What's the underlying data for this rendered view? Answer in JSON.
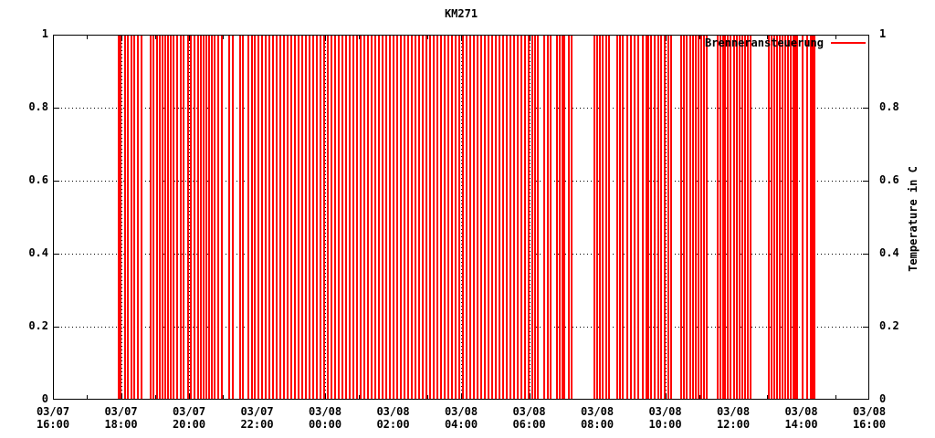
{
  "title": "KM271",
  "legend": {
    "label": "Brenneransteuerung"
  },
  "y2_title": "Temperature in C",
  "colors": {
    "impulse": "#ff0000",
    "frame": "#000000",
    "grid": "#000000",
    "background": "#ffffff",
    "text": "#000000"
  },
  "chart_data": {
    "type": "impulse",
    "title": "KM271",
    "legend": {
      "label": "Brenneransteuerung",
      "position": "top-right"
    },
    "x_axis": {
      "range_hours": [
        0,
        24
      ],
      "major_tick_every_hours": 2,
      "minor_tick_every_hours": 1,
      "grid": "dotted",
      "tick_labels": [
        {
          "date": "03/07",
          "time": "16:00"
        },
        {
          "date": "03/07",
          "time": "18:00"
        },
        {
          "date": "03/07",
          "time": "20:00"
        },
        {
          "date": "03/07",
          "time": "22:00"
        },
        {
          "date": "03/08",
          "time": "00:00"
        },
        {
          "date": "03/08",
          "time": "02:00"
        },
        {
          "date": "03/08",
          "time": "04:00"
        },
        {
          "date": "03/08",
          "time": "06:00"
        },
        {
          "date": "03/08",
          "time": "08:00"
        },
        {
          "date": "03/08",
          "time": "10:00"
        },
        {
          "date": "03/08",
          "time": "12:00"
        },
        {
          "date": "03/08",
          "time": "14:00"
        },
        {
          "date": "03/08",
          "time": "16:00"
        }
      ]
    },
    "y_axis": {
      "range": [
        0,
        1
      ],
      "tick_values": [
        0,
        0.2,
        0.4,
        0.6,
        0.8,
        1
      ],
      "tick_labels": [
        "0",
        "0.2",
        "0.4",
        "0.6",
        "0.8",
        "1"
      ],
      "grid": "dotted",
      "mirrored_right": true
    },
    "y2_axis_title": "Temperature in C",
    "series": [
      {
        "name": "Brenneransteuerung",
        "color": "#ff0000",
        "impulse_value": 1,
        "times_hours": [
          1.906,
          1.96,
          2.094,
          2.174,
          2.282,
          2.362,
          2.47,
          2.577,
          2.846,
          2.926,
          3.034,
          3.114,
          3.195,
          3.275,
          3.356,
          3.436,
          3.517,
          3.624,
          3.732,
          3.812,
          3.946,
          4.027,
          4.134,
          4.242,
          4.322,
          4.403,
          4.483,
          4.564,
          4.644,
          4.724,
          4.832,
          4.939,
          5.154,
          5.262,
          5.477,
          5.557,
          5.718,
          5.825,
          5.906,
          6.013,
          6.121,
          6.228,
          6.336,
          6.443,
          6.55,
          6.658,
          6.765,
          6.872,
          6.98,
          7.087,
          7.195,
          7.302,
          7.409,
          7.517,
          7.624,
          7.732,
          7.839,
          7.946,
          8.054,
          8.161,
          8.268,
          8.376,
          8.483,
          8.591,
          8.698,
          8.805,
          8.913,
          9.02,
          9.128,
          9.235,
          9.342,
          9.45,
          9.557,
          9.664,
          9.772,
          9.879,
          9.987,
          10.094,
          10.201,
          10.309,
          10.416,
          10.523,
          10.631,
          10.738,
          10.846,
          10.953,
          11.06,
          11.168,
          11.275,
          11.383,
          11.49,
          11.597,
          11.705,
          11.812,
          11.919,
          12.027,
          12.134,
          12.242,
          12.349,
          12.456,
          12.564,
          12.671,
          12.779,
          12.886,
          12.993,
          13.101,
          13.208,
          13.315,
          13.423,
          13.53,
          13.638,
          13.745,
          13.852,
          13.96,
          14.067,
          14.148,
          14.228,
          14.416,
          14.523,
          14.604,
          14.792,
          14.872,
          14.953,
          15.007,
          15.141,
          15.221,
          15.893,
          15.973,
          16.054,
          16.134,
          16.242,
          16.322,
          16.564,
          16.644,
          16.725,
          16.859,
          16.966,
          17.074,
          17.181,
          17.315,
          17.423,
          17.477,
          17.557,
          17.664,
          17.772,
          17.852,
          17.96,
          18.067,
          18.148,
          18.443,
          18.523,
          18.604,
          18.711,
          18.792,
          18.872,
          18.953,
          19.034,
          19.114,
          19.195,
          19.517,
          19.597,
          19.678,
          19.732,
          19.812,
          19.893,
          20.0,
          20.081,
          20.161,
          20.242,
          20.322,
          20.403,
          20.483,
          21.02,
          21.101,
          21.181,
          21.262,
          21.342,
          21.423,
          21.503,
          21.584,
          21.664,
          21.745,
          21.799,
          21.852,
          22.013,
          22.148,
          22.255,
          22.309,
          22.362
        ]
      }
    ]
  }
}
